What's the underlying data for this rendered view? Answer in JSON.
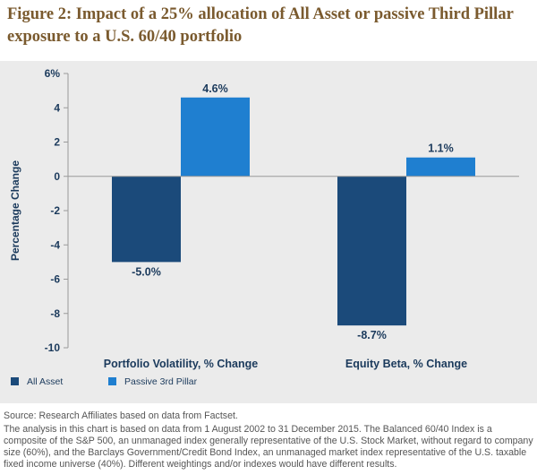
{
  "title": "Figure 2: Impact of a 25% allocation of All Asset or passive Third Pillar exposure to a U.S. 60/40 portfolio",
  "source_note": "Source: Research Affiliates based on data from Factset.",
  "analysis_note": "The analysis in this chart is based on data from 1 August 2002 to 31 December 2015. The Balanced 60/40 Index is a composite of the S&P 500, an unmanaged index generally representative of the U.S. Stock Market, without regard to company size (60%), and the Barclays Government/Credit Bond Index, an unmanaged market index representative of the U.S. taxable fixed income universe (40%). Different weightings and/or indexes would have different results.",
  "colors": {
    "title": "#7a5a2e",
    "all_asset": "#1b4a7a",
    "passive": "#1f7fd0",
    "panel": "#ebebeb"
  },
  "chart_data": {
    "type": "bar",
    "title": "Figure 2: Impact of a 25% allocation of All Asset or passive Third Pillar exposure to a U.S. 60/40 portfolio",
    "ylabel": "Percentage Change",
    "xlabel": "",
    "ylim": [
      -10,
      6
    ],
    "yticks": [
      6,
      4,
      2,
      0,
      -2,
      -4,
      -6,
      -8,
      -10
    ],
    "ytick_labels": [
      "6%",
      "4",
      "2",
      "0",
      "-2",
      "-4",
      "-6",
      "-8",
      "-10"
    ],
    "grid": false,
    "legend_position": "bottom-left",
    "categories": [
      "Portfolio Volatility, % Change",
      "Equity Beta, % Change"
    ],
    "series": [
      {
        "name": "All Asset",
        "color": "#1b4a7a",
        "values": [
          -5.0,
          -8.7
        ],
        "labels": [
          "-5.0%",
          "-8.7%"
        ]
      },
      {
        "name": "Passive 3rd Pillar",
        "color": "#1f7fd0",
        "values": [
          4.6,
          1.1
        ],
        "labels": [
          "4.6%",
          "1.1%"
        ]
      }
    ]
  }
}
